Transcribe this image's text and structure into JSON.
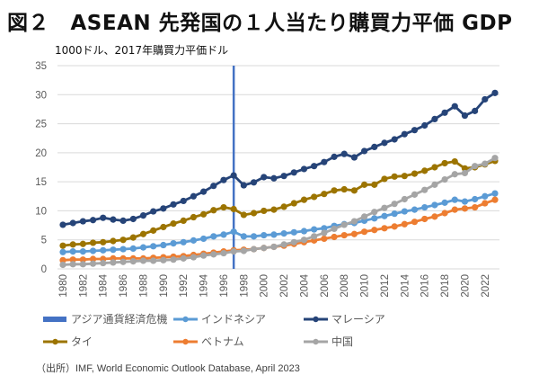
{
  "title": "図２　ASEAN 先発国の１人当たり購買力平価 GDP",
  "source": "（出所）IMF, World Economic Outlook Database, April 2023",
  "chart_data": {
    "type": "line",
    "title": "図２　ASEAN 先発国の１人当たり購買力平価 GDP",
    "ylabel": "1000ドル、2017年購買力平価ドル",
    "xlabel": "",
    "ylim": [
      0,
      35
    ],
    "yticks": [
      0,
      5,
      10,
      15,
      20,
      25,
      30,
      35
    ],
    "xticks": [
      "1980",
      "1982",
      "1984",
      "1986",
      "1988",
      "1990",
      "1992",
      "1994",
      "1996",
      "1998",
      "2000",
      "2002",
      "2004",
      "2006",
      "2008",
      "2010",
      "2012",
      "2014",
      "2016",
      "2018",
      "2020",
      "2022"
    ],
    "x": [
      1980,
      1981,
      1982,
      1983,
      1984,
      1985,
      1986,
      1987,
      1988,
      1989,
      1990,
      1991,
      1992,
      1993,
      1994,
      1995,
      1996,
      1997,
      1998,
      1999,
      2000,
      2001,
      2002,
      2003,
      2004,
      2005,
      2006,
      2007,
      2008,
      2009,
      2010,
      2011,
      2012,
      2013,
      2014,
      2015,
      2016,
      2017,
      2018,
      2019,
      2020,
      2021,
      2022,
      2023
    ],
    "grid": true,
    "legend_position": "bottom",
    "annotation": {
      "label": "アジア通貨経済危機",
      "x": 1997,
      "color": "#4472C4"
    },
    "series": [
      {
        "name": "インドネシア",
        "color": "#5B9BD5",
        "values": [
          2.9,
          3.0,
          3.0,
          3.1,
          3.2,
          3.3,
          3.4,
          3.5,
          3.7,
          3.9,
          4.1,
          4.4,
          4.6,
          4.9,
          5.2,
          5.6,
          5.9,
          6.4,
          5.6,
          5.6,
          5.8,
          5.9,
          6.1,
          6.3,
          6.5,
          6.8,
          7.0,
          7.4,
          7.7,
          7.9,
          8.3,
          8.7,
          9.1,
          9.5,
          9.9,
          10.2,
          10.6,
          11.0,
          11.4,
          11.9,
          11.6,
          12.0,
          12.5,
          13.0
        ]
      },
      {
        "name": "マレーシア",
        "color": "#264478",
        "values": [
          7.6,
          7.9,
          8.2,
          8.4,
          8.8,
          8.5,
          8.3,
          8.6,
          9.2,
          9.9,
          10.4,
          11.1,
          11.7,
          12.5,
          13.3,
          14.3,
          15.3,
          16.1,
          14.4,
          14.9,
          15.8,
          15.6,
          16.0,
          16.6,
          17.2,
          17.7,
          18.4,
          19.3,
          19.8,
          19.2,
          20.3,
          21.0,
          21.7,
          22.3,
          23.2,
          23.9,
          24.7,
          25.8,
          26.9,
          28.0,
          26.4,
          27.2,
          29.2,
          30.3
        ]
      },
      {
        "name": "タイ",
        "color": "#9C7400",
        "values": [
          4.0,
          4.2,
          4.3,
          4.5,
          4.6,
          4.8,
          5.0,
          5.4,
          6.0,
          6.6,
          7.2,
          7.8,
          8.3,
          8.9,
          9.4,
          10.1,
          10.6,
          10.3,
          9.3,
          9.6,
          10.0,
          10.2,
          10.7,
          11.3,
          11.9,
          12.4,
          12.9,
          13.5,
          13.7,
          13.5,
          14.5,
          14.5,
          15.5,
          15.9,
          16.0,
          16.4,
          16.9,
          17.5,
          18.2,
          18.5,
          17.3,
          17.5,
          18.0,
          18.6
        ]
      },
      {
        "name": "ベトナム",
        "color": "#ED7D31",
        "values": [
          1.5,
          1.6,
          1.6,
          1.7,
          1.7,
          1.8,
          1.8,
          1.8,
          1.8,
          1.9,
          2.0,
          2.1,
          2.2,
          2.4,
          2.6,
          2.8,
          3.0,
          3.2,
          3.3,
          3.4,
          3.6,
          3.8,
          4.0,
          4.3,
          4.6,
          4.9,
          5.2,
          5.5,
          5.8,
          6.0,
          6.4,
          6.7,
          7.0,
          7.3,
          7.7,
          8.1,
          8.6,
          9.0,
          9.6,
          10.2,
          10.4,
          10.6,
          11.3,
          11.9
        ]
      },
      {
        "name": "中国",
        "color": "#A5A5A5",
        "values": [
          0.7,
          0.8,
          0.8,
          0.9,
          1.0,
          1.1,
          1.2,
          1.3,
          1.4,
          1.4,
          1.5,
          1.6,
          1.8,
          2.0,
          2.3,
          2.5,
          2.7,
          3.0,
          3.1,
          3.4,
          3.6,
          3.8,
          4.2,
          4.6,
          5.0,
          5.6,
          6.2,
          6.9,
          7.6,
          8.2,
          9.0,
          9.8,
          10.5,
          11.2,
          12.0,
          12.8,
          13.6,
          14.5,
          15.4,
          16.3,
          16.5,
          17.7,
          18.1,
          19.1
        ]
      }
    ]
  },
  "legend": {
    "items": [
      {
        "label": "アジア通貨経済危機",
        "color": "#4472C4",
        "kind": "bar"
      },
      {
        "label": "インドネシア",
        "color": "#5B9BD5",
        "kind": "line"
      },
      {
        "label": "マレーシア",
        "color": "#264478",
        "kind": "line"
      },
      {
        "label": "タイ",
        "color": "#9C7400",
        "kind": "line"
      },
      {
        "label": "ベトナム",
        "color": "#ED7D31",
        "kind": "line"
      },
      {
        "label": "中国",
        "color": "#A5A5A5",
        "kind": "line"
      }
    ]
  }
}
